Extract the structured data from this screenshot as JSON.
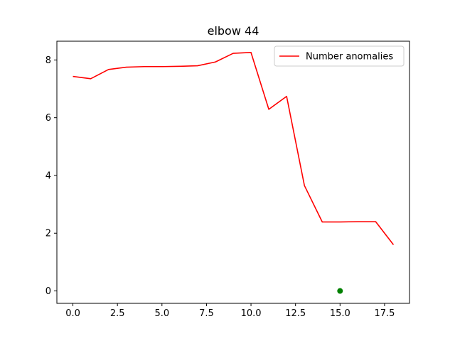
{
  "chart_data": {
    "type": "line",
    "title": "elbow 44",
    "xlabel": "",
    "ylabel": "",
    "xlim": [
      -0.9,
      18.9
    ],
    "ylim": [
      -0.43,
      8.65
    ],
    "xticks": [
      0.0,
      2.5,
      5.0,
      7.5,
      10.0,
      12.5,
      15.0,
      17.5
    ],
    "xtick_labels": [
      "0.0",
      "2.5",
      "5.0",
      "7.5",
      "10.0",
      "12.5",
      "15.0",
      "17.5"
    ],
    "yticks": [
      0,
      2,
      4,
      6,
      8
    ],
    "ytick_labels": [
      "0",
      "2",
      "4",
      "6",
      "8"
    ],
    "grid": false,
    "legend_position": "top-right",
    "series": [
      {
        "name": "Number anomalies",
        "color": "#ff0000",
        "x": [
          0,
          1,
          2,
          3,
          4,
          5,
          6,
          7,
          8,
          9,
          10,
          11,
          12,
          13,
          14,
          15,
          16,
          17,
          18
        ],
        "values": [
          7.43,
          7.35,
          7.67,
          7.75,
          7.77,
          7.77,
          7.78,
          7.8,
          7.93,
          8.23,
          8.26,
          6.29,
          6.74,
          3.65,
          2.39,
          2.39,
          2.4,
          2.4,
          1.6
        ]
      }
    ],
    "points": [
      {
        "x": 15,
        "y": 0,
        "color": "#008000"
      }
    ]
  }
}
